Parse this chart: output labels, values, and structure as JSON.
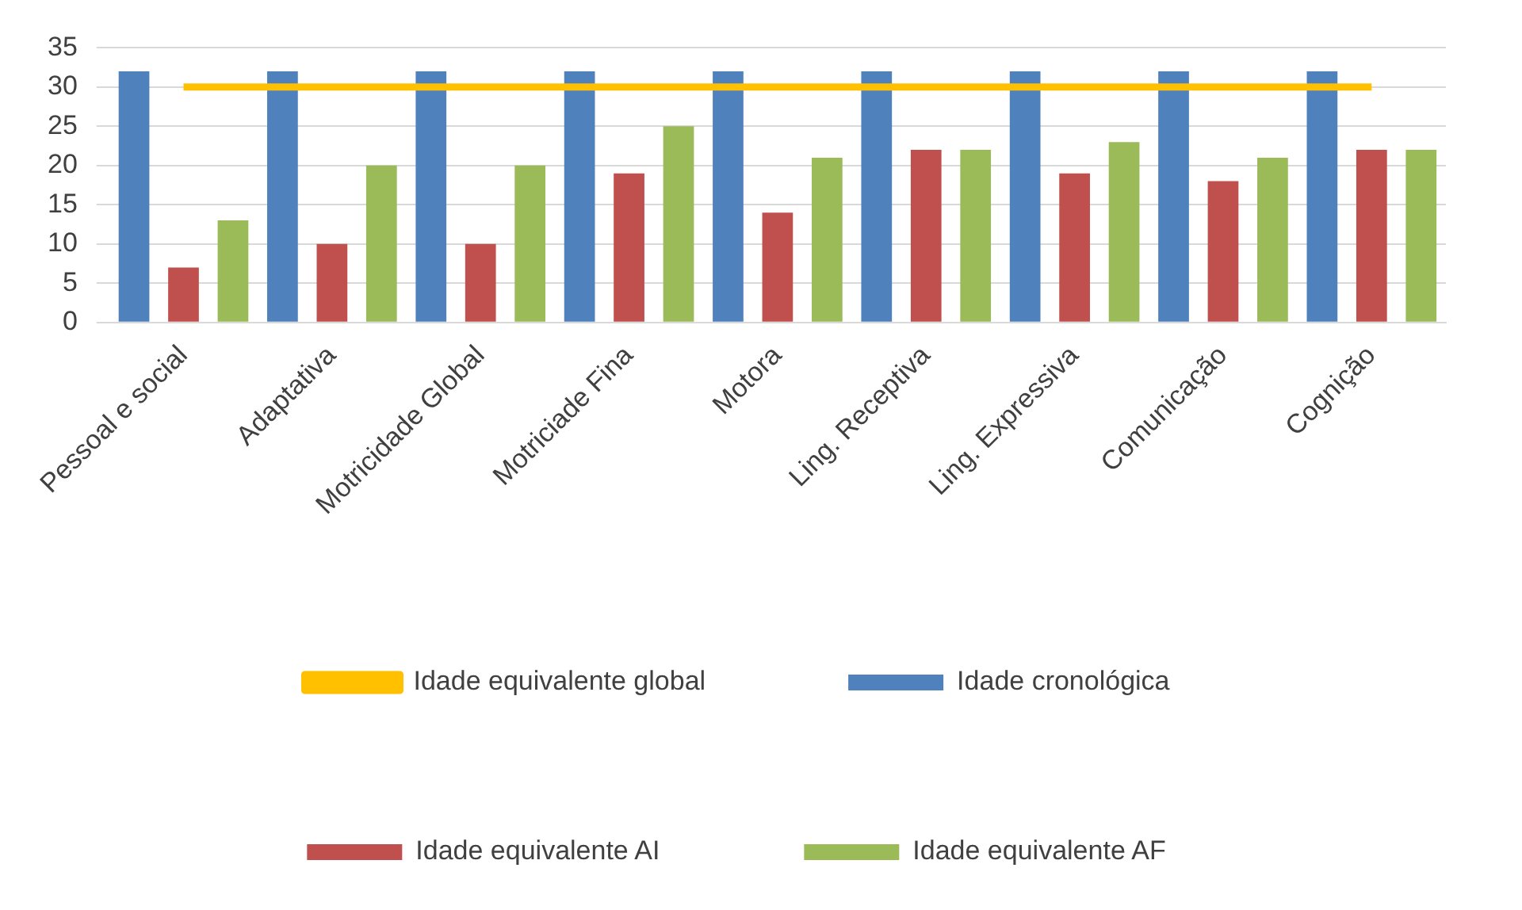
{
  "chart_data": {
    "type": "bar",
    "categories": [
      "Pessoal e social",
      "Adaptativa",
      "Motricidade Global",
      "Motriciade Fina",
      "Motora",
      "Ling. Receptiva",
      "Ling. Expressiva",
      "Comunicação",
      "Cognição"
    ],
    "series": [
      {
        "name": "Idade cronológica",
        "color": "#4f81bd",
        "values": [
          32,
          32,
          32,
          32,
          32,
          32,
          32,
          32,
          32
        ]
      },
      {
        "name": "Idade equivalente AI",
        "color": "#c0504d",
        "values": [
          7,
          10,
          10,
          19,
          14,
          22,
          19,
          18,
          22
        ]
      },
      {
        "name": "Idade equivalente AF",
        "color": "#9bbb59",
        "values": [
          13,
          20,
          20,
          25,
          21,
          22,
          23,
          21,
          22
        ]
      },
      {
        "name": "Idade equivalente global",
        "color": "#ffc000",
        "type": "line",
        "values": [
          30,
          30,
          30,
          30,
          30,
          30,
          30,
          30,
          30
        ]
      }
    ],
    "ylim": [
      0,
      35
    ],
    "yticks": [
      0,
      5,
      10,
      15,
      20,
      25,
      30,
      35
    ],
    "grid": "y",
    "legend": "bottom",
    "marker": "none"
  }
}
